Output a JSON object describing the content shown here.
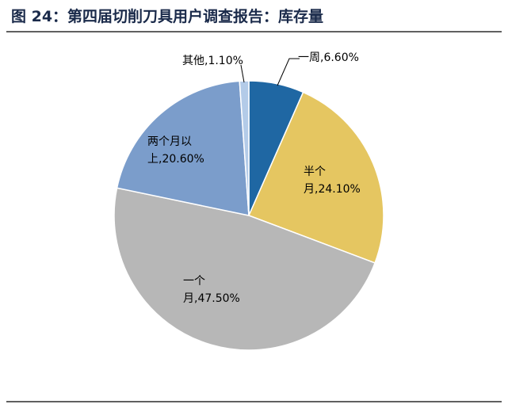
{
  "chart_data": {
    "type": "pie",
    "title": "图 24：第四届切削刀具用户调查报告：库存量",
    "values": [
      6.6,
      24.1,
      47.5,
      20.6,
      1.1
    ],
    "value_labels": [
      "一周,6.60%",
      "半个月,24.10%",
      "一个月,47.50%",
      "两个月以上,20.60%",
      "其他,1.10%"
    ],
    "colors": [
      "#1f67a3",
      "#e5c661",
      "#b7b7b7",
      "#7b9dcb",
      "#b3cbe8"
    ]
  }
}
